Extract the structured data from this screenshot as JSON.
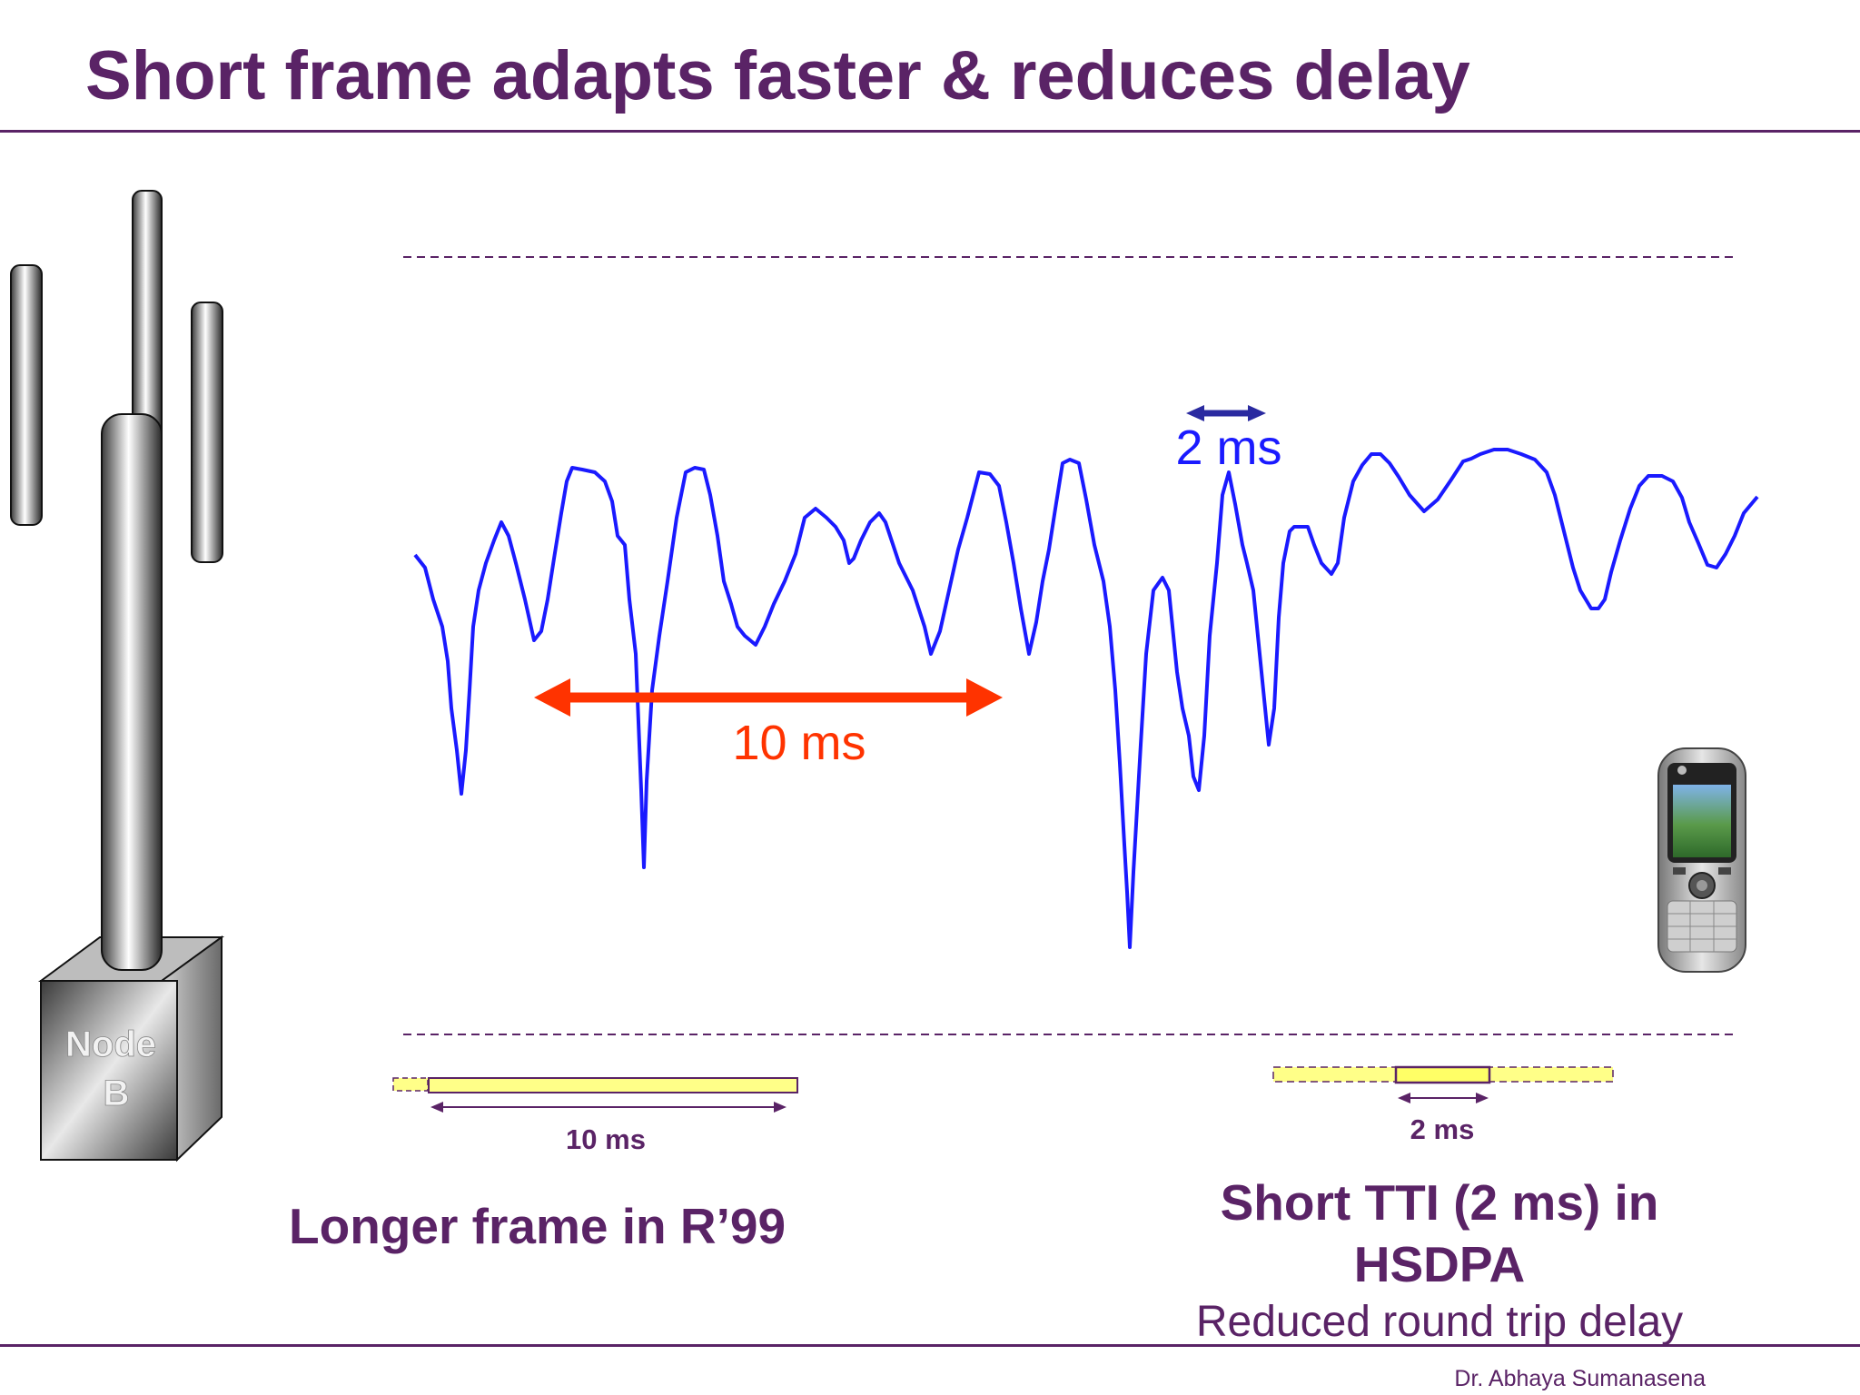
{
  "slide": {
    "title": "Short frame adapts faster & reduces delay",
    "author": "Dr. Abhaya Sumanasena"
  },
  "node_b": {
    "label_line1": "Node",
    "label_line2": "B"
  },
  "annotations": {
    "long_frame_arrow": "10 ms",
    "short_tti_arrow": "2 ms",
    "r99_frame_length": "10 ms",
    "hsdpa_tti_length": "2 ms"
  },
  "captions": {
    "left": "Longer frame in R’99",
    "right": "Short TTI (2 ms) in HSDPA",
    "right_sub": "Reduced round trip delay"
  },
  "colors": {
    "title": "#5a2366",
    "signal": "#1a1aff",
    "long_arrow": "#ff3300",
    "short_arrow": "#2a2aa0",
    "frame_fill": "#ffff88"
  }
}
